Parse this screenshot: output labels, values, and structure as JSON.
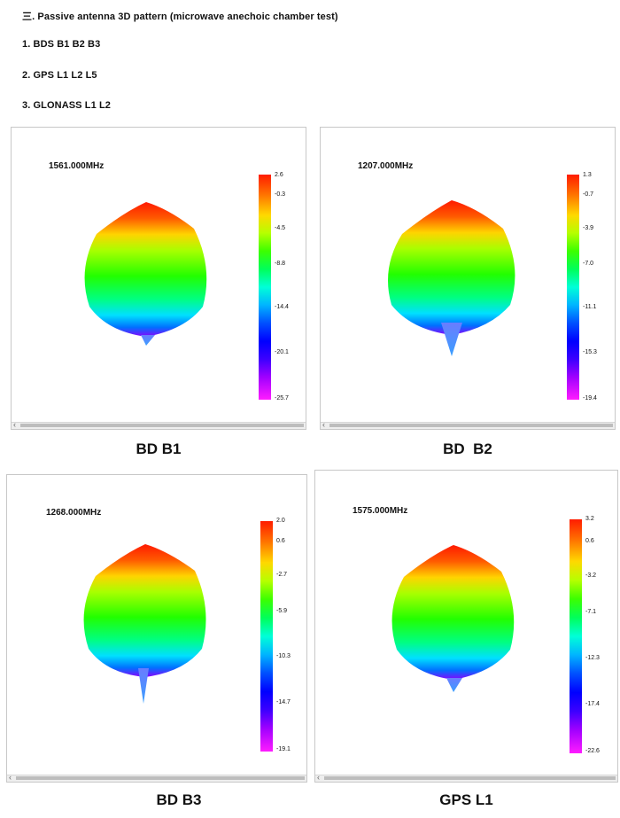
{
  "headings": {
    "title": "三. Passive antenna 3D pattern (microwave anechoic chamber test)",
    "item_1": "1. BDS B1 B2 B3",
    "item_2": "2. GPS L1 L2 L5",
    "item_3": "3. GLONASS L1 L2"
  },
  "panels": [
    {
      "frequency": "1561.000MHz",
      "caption": "BD B1",
      "scale_ticks": [
        "2.6",
        "-0.3",
        "-4.5",
        "-8.8",
        "-14.4",
        "-20.1",
        "-25.7"
      ],
      "colors": {
        "top": "#ff2a00",
        "lobe": "#3cff00"
      }
    },
    {
      "frequency": "1207.000MHz",
      "caption": "BD  B2",
      "scale_ticks": [
        "1.3",
        "-0.7",
        "-3.9",
        "-7.0",
        "-11.1",
        "-15.3",
        "-19.4"
      ],
      "colors": {
        "top": "#ff2a00",
        "lobe": "#3cff00"
      }
    },
    {
      "frequency": "1268.000MHz",
      "caption": "BD B3",
      "scale_ticks": [
        "2.0",
        "0.6",
        "-2.7",
        "-5.9",
        "-10.3",
        "-14.7",
        "-19.1"
      ],
      "colors": {
        "top": "#ff2a00",
        "lobe": "#3cff00"
      }
    },
    {
      "frequency": "1575.000MHz",
      "caption": "GPS L1",
      "scale_ticks": [
        "3.2",
        "0.6",
        "-3.2",
        "-7.1",
        "-12.3",
        "-17.4",
        "-22.6"
      ],
      "colors": {
        "top": "#ff2a00",
        "lobe": "#3cff00"
      }
    }
  ]
}
